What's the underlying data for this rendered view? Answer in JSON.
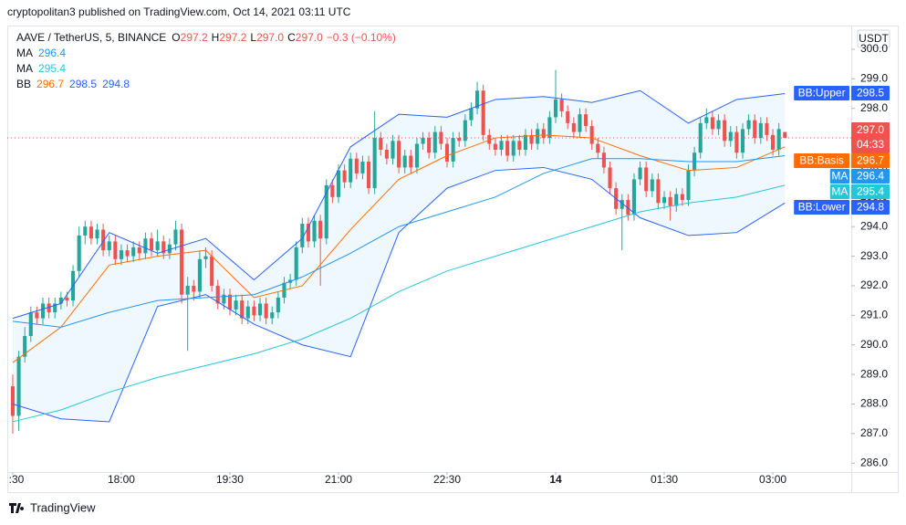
{
  "header": "cryptopolitan3 published on TradingView.com, Oct 14, 2021 03:11 UTC",
  "footer": "TradingView",
  "chart_data": {
    "type": "candlestick",
    "symbol": "AAVE / TetherUS, 5, BINANCE",
    "ohlc_legend": [
      {
        "key": "O",
        "value": "297.2"
      },
      {
        "key": "H",
        "value": "297.2"
      },
      {
        "key": "L",
        "value": "297.0"
      },
      {
        "key": "C",
        "value": "297.0"
      }
    ],
    "change": "−0.3 (−0.10%)",
    "bb_label": "BB",
    "currency": "USDT",
    "up_color": "#26a69a",
    "down_color": "#ef5350",
    "band_color": "#2196f3",
    "ohlc": [
      [
        288.6,
        289.0,
        287.0,
        287.6
      ],
      [
        287.6,
        289.8,
        287.1,
        289.6
      ],
      [
        289.6,
        290.6,
        289.4,
        290.3
      ],
      [
        290.3,
        291.3,
        290.1,
        291.1
      ],
      [
        291.1,
        291.3,
        290.7,
        290.9
      ],
      [
        290.9,
        291.6,
        290.7,
        291.4
      ],
      [
        291.4,
        291.6,
        290.9,
        291.1
      ],
      [
        291.1,
        291.6,
        290.9,
        291.4
      ],
      [
        291.4,
        291.8,
        291.2,
        291.6
      ],
      [
        291.6,
        291.8,
        291.3,
        291.5
      ],
      [
        291.5,
        292.7,
        291.3,
        292.5
      ],
      [
        292.5,
        294.0,
        292.3,
        293.7
      ],
      [
        293.7,
        294.2,
        293.4,
        294.0
      ],
      [
        294.0,
        294.2,
        293.4,
        293.6
      ],
      [
        293.6,
        294.1,
        293.4,
        293.9
      ],
      [
        293.9,
        294.1,
        293.0,
        293.2
      ],
      [
        293.2,
        293.7,
        293.0,
        293.5
      ],
      [
        293.5,
        293.7,
        292.7,
        292.9
      ],
      [
        292.9,
        293.4,
        292.7,
        293.2
      ],
      [
        293.2,
        293.4,
        292.8,
        293.0
      ],
      [
        293.0,
        293.5,
        292.8,
        293.3
      ],
      [
        293.3,
        293.5,
        292.9,
        293.1
      ],
      [
        293.1,
        293.8,
        292.9,
        293.6
      ],
      [
        293.6,
        293.8,
        293.0,
        293.2
      ],
      [
        293.2,
        293.9,
        293.0,
        293.5
      ],
      [
        293.5,
        293.7,
        292.9,
        293.1
      ],
      [
        293.1,
        293.6,
        292.9,
        293.4
      ],
      [
        293.4,
        294.2,
        293.2,
        293.9
      ],
      [
        293.9,
        294.1,
        291.4,
        291.7
      ],
      [
        291.7,
        292.3,
        289.8,
        292.0
      ],
      [
        292.0,
        292.2,
        291.5,
        291.8
      ],
      [
        291.8,
        293.2,
        291.6,
        292.9
      ],
      [
        292.9,
        293.3,
        292.6,
        293.0
      ],
      [
        293.0,
        293.2,
        291.8,
        292.0
      ],
      [
        292.0,
        292.2,
        291.2,
        291.4
      ],
      [
        291.4,
        291.9,
        291.2,
        291.7
      ],
      [
        291.7,
        291.9,
        291.0,
        291.2
      ],
      [
        291.2,
        291.7,
        291.0,
        291.5
      ],
      [
        291.5,
        291.7,
        290.7,
        290.9
      ],
      [
        290.9,
        291.5,
        290.7,
        291.3
      ],
      [
        291.3,
        291.5,
        290.8,
        291.0
      ],
      [
        291.0,
        291.6,
        290.8,
        291.4
      ],
      [
        291.4,
        291.6,
        290.7,
        290.9
      ],
      [
        290.9,
        291.3,
        290.7,
        291.1
      ],
      [
        291.1,
        291.8,
        290.9,
        291.6
      ],
      [
        291.6,
        292.3,
        291.4,
        292.1
      ],
      [
        292.1,
        292.4,
        291.9,
        292.2
      ],
      [
        292.2,
        293.5,
        292.0,
        293.3
      ],
      [
        293.3,
        294.3,
        293.1,
        294.1
      ],
      [
        294.1,
        294.3,
        293.3,
        293.5
      ],
      [
        293.5,
        294.4,
        293.3,
        294.2
      ],
      [
        294.2,
        294.4,
        292.0,
        293.6
      ],
      [
        293.6,
        295.6,
        293.4,
        295.4
      ],
      [
        295.4,
        295.6,
        294.8,
        295.0
      ],
      [
        295.0,
        296.1,
        294.8,
        295.9
      ],
      [
        295.9,
        296.1,
        295.3,
        295.5
      ],
      [
        295.5,
        296.5,
        295.3,
        296.3
      ],
      [
        296.3,
        296.5,
        295.6,
        295.8
      ],
      [
        295.8,
        296.4,
        295.6,
        296.2
      ],
      [
        296.2,
        296.4,
        295.1,
        295.3
      ],
      [
        295.3,
        297.9,
        295.1,
        297.0
      ],
      [
        297.0,
        297.2,
        296.4,
        296.6
      ],
      [
        296.6,
        296.8,
        296.1,
        296.3
      ],
      [
        296.3,
        297.1,
        296.1,
        296.9
      ],
      [
        296.9,
        297.1,
        295.8,
        296.0
      ],
      [
        296.0,
        296.6,
        295.8,
        296.4
      ],
      [
        296.4,
        296.6,
        295.8,
        296.0
      ],
      [
        296.0,
        297.0,
        295.8,
        296.8
      ],
      [
        296.8,
        297.2,
        296.6,
        297.0
      ],
      [
        297.0,
        297.2,
        296.3,
        296.5
      ],
      [
        296.5,
        297.4,
        296.3,
        297.2
      ],
      [
        297.2,
        297.4,
        296.6,
        296.8
      ],
      [
        296.8,
        297.0,
        296.0,
        296.2
      ],
      [
        296.2,
        297.2,
        296.0,
        297.0
      ],
      [
        297.0,
        297.2,
        296.7,
        296.9
      ],
      [
        296.9,
        297.8,
        296.7,
        297.6
      ],
      [
        297.6,
        298.2,
        297.4,
        298.0
      ],
      [
        298.0,
        298.9,
        297.8,
        298.6
      ],
      [
        298.6,
        298.8,
        296.9,
        297.1
      ],
      [
        297.1,
        297.3,
        296.6,
        296.8
      ],
      [
        296.8,
        297.0,
        296.4,
        296.6
      ],
      [
        296.6,
        297.1,
        296.4,
        296.9
      ],
      [
        296.9,
        297.1,
        296.2,
        296.4
      ],
      [
        296.4,
        297.1,
        296.2,
        296.9
      ],
      [
        296.9,
        297.1,
        296.4,
        296.6
      ],
      [
        296.6,
        297.3,
        296.4,
        297.1
      ],
      [
        297.1,
        297.3,
        296.6,
        296.8
      ],
      [
        296.8,
        297.5,
        296.6,
        297.3
      ],
      [
        297.3,
        297.5,
        296.8,
        297.0
      ],
      [
        297.0,
        297.9,
        296.8,
        297.7
      ],
      [
        297.7,
        299.3,
        297.5,
        298.3
      ],
      [
        298.3,
        298.5,
        297.7,
        297.9
      ],
      [
        297.9,
        298.1,
        297.3,
        297.5
      ],
      [
        297.5,
        297.7,
        297.0,
        297.2
      ],
      [
        297.2,
        298.0,
        297.0,
        297.8
      ],
      [
        297.8,
        298.0,
        297.2,
        297.4
      ],
      [
        297.4,
        297.6,
        296.6,
        296.8
      ],
      [
        296.8,
        297.0,
        296.3,
        296.5
      ],
      [
        296.5,
        296.7,
        295.8,
        296.0
      ],
      [
        296.0,
        296.2,
        295.1,
        295.3
      ],
      [
        295.3,
        295.5,
        294.4,
        294.6
      ],
      [
        294.6,
        295.1,
        293.2,
        294.9
      ],
      [
        294.9,
        295.1,
        294.2,
        294.4
      ],
      [
        294.4,
        295.8,
        294.2,
        295.6
      ],
      [
        295.6,
        296.2,
        295.4,
        296.0
      ],
      [
        296.0,
        296.2,
        295.0,
        295.2
      ],
      [
        295.2,
        295.8,
        295.0,
        295.6
      ],
      [
        295.6,
        295.8,
        294.6,
        294.8
      ],
      [
        294.8,
        295.2,
        294.6,
        295.0
      ],
      [
        295.0,
        295.2,
        294.2,
        294.7
      ],
      [
        294.7,
        295.3,
        294.5,
        295.1
      ],
      [
        295.1,
        295.3,
        294.7,
        294.9
      ],
      [
        294.9,
        296.1,
        294.7,
        295.9
      ],
      [
        295.9,
        296.7,
        295.7,
        296.5
      ],
      [
        296.5,
        297.7,
        296.3,
        297.5
      ],
      [
        297.5,
        298.0,
        297.3,
        297.7
      ],
      [
        297.7,
        297.9,
        297.1,
        297.3
      ],
      [
        297.3,
        297.8,
        297.1,
        297.6
      ],
      [
        297.6,
        297.8,
        296.7,
        296.9
      ],
      [
        296.9,
        297.4,
        296.7,
        297.2
      ],
      [
        297.2,
        297.4,
        296.3,
        296.5
      ],
      [
        296.5,
        297.5,
        296.3,
        297.3
      ],
      [
        297.3,
        297.8,
        297.1,
        297.6
      ],
      [
        297.6,
        297.8,
        296.8,
        297.0
      ],
      [
        297.0,
        297.7,
        296.8,
        297.5
      ],
      [
        297.5,
        297.7,
        296.9,
        297.1
      ],
      [
        297.1,
        297.3,
        296.4,
        296.6
      ],
      [
        296.6,
        297.5,
        296.4,
        297.3
      ],
      [
        297.2,
        297.2,
        297.0,
        297.0
      ]
    ],
    "series": [
      {
        "name": "BB:Upper",
        "color": "#2962ff",
        "x": [
          0,
          8,
          16,
          24,
          32,
          40,
          48,
          56,
          64,
          72,
          80,
          88,
          96,
          104,
          112,
          120,
          128
        ],
        "values": [
          290.9,
          291.4,
          293.8,
          293.1,
          293.6,
          292.2,
          293.6,
          296.7,
          297.8,
          297.7,
          298.3,
          298.4,
          298.2,
          298.6,
          297.5,
          298.3,
          298.5
        ]
      },
      {
        "name": "BB:Basis",
        "color": "#ff6d00",
        "x": [
          0,
          8,
          16,
          24,
          32,
          40,
          48,
          56,
          64,
          72,
          80,
          88,
          96,
          104,
          112,
          120,
          128
        ],
        "values": [
          289.4,
          290.6,
          292.7,
          293.0,
          293.2,
          291.6,
          292.0,
          293.9,
          295.6,
          296.4,
          297.0,
          297.1,
          297.0,
          296.4,
          295.9,
          296.0,
          296.7
        ]
      },
      {
        "name": "BB:Lower",
        "color": "#2962ff",
        "x": [
          0,
          8,
          16,
          24,
          32,
          40,
          48,
          56,
          64,
          72,
          80,
          88,
          96,
          104,
          112,
          120,
          128
        ],
        "values": [
          288.0,
          287.5,
          287.4,
          291.3,
          291.7,
          290.7,
          290.0,
          289.6,
          293.8,
          295.3,
          295.9,
          296.0,
          295.6,
          294.3,
          293.7,
          293.8,
          294.8
        ]
      },
      {
        "name": "MA",
        "color": "#2196f3",
        "x": [
          0,
          8,
          16,
          24,
          32,
          40,
          48,
          56,
          64,
          72,
          80,
          88,
          96,
          104,
          112,
          120,
          128
        ],
        "values": [
          290.8,
          290.6,
          291.1,
          291.5,
          291.6,
          291.7,
          292.3,
          293.1,
          294.0,
          294.5,
          295.0,
          295.8,
          296.3,
          296.3,
          296.2,
          296.2,
          296.4
        ]
      },
      {
        "name": "MA",
        "color": "#26c6da",
        "x": [
          0,
          8,
          16,
          24,
          32,
          40,
          48,
          56,
          64,
          72,
          80,
          88,
          96,
          104,
          112,
          120,
          128
        ],
        "values": [
          287.4,
          287.8,
          288.4,
          288.9,
          289.3,
          289.7,
          290.2,
          290.9,
          291.8,
          292.5,
          293.0,
          293.5,
          294.0,
          294.5,
          294.8,
          295.0,
          295.4
        ]
      }
    ],
    "last_price": {
      "value": 297.0,
      "label": "297.0",
      "countdown": "04:33",
      "color": "#ef5350"
    },
    "xlim": [
      -0.9,
      139
    ],
    "xticks": [
      {
        "value": 0,
        "label": ":30"
      },
      {
        "value": 18,
        "label": "18:00"
      },
      {
        "value": 36,
        "label": "19:30"
      },
      {
        "value": 54,
        "label": "21:00"
      },
      {
        "value": 72,
        "label": "22:30"
      },
      {
        "value": 90,
        "label": "14"
      },
      {
        "value": 108,
        "label": "01:30"
      },
      {
        "value": 126,
        "label": "03:00"
      }
    ],
    "ylim": [
      285.7,
      300.8
    ],
    "yticks": [
      {
        "value": 286,
        "label": "286.0"
      },
      {
        "value": 287,
        "label": "287.0"
      },
      {
        "value": 288,
        "label": "288.0"
      },
      {
        "value": 289,
        "label": "289.0"
      },
      {
        "value": 290,
        "label": "290.0"
      },
      {
        "value": 291,
        "label": "291.0"
      },
      {
        "value": 292,
        "label": "292.0"
      },
      {
        "value": 293,
        "label": "293.0"
      },
      {
        "value": 294,
        "label": "294.0"
      },
      {
        "value": 295,
        "label": "295.0"
      },
      {
        "value": 296,
        "label": "296.0"
      },
      {
        "value": 297,
        "label": "297.0"
      },
      {
        "value": 298,
        "label": "298.0"
      },
      {
        "value": 299,
        "label": "299.0"
      },
      {
        "value": 300,
        "label": "300.0"
      }
    ],
    "grid": false
  }
}
